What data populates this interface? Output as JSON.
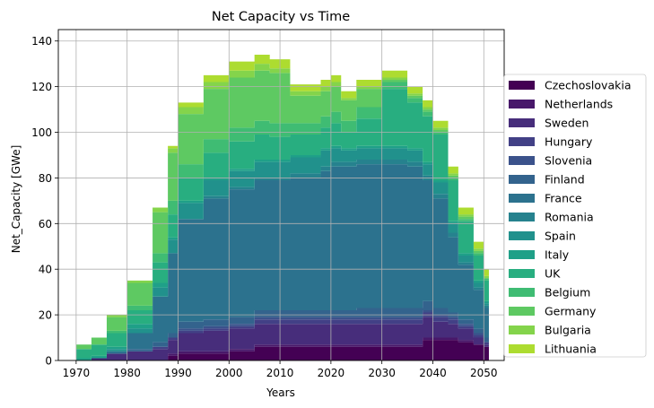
{
  "chart_data": {
    "type": "area",
    "stacked": true,
    "step": true,
    "title": "Net Capacity vs Time",
    "xlabel": "Years",
    "ylabel": "Net_Capacity [GWe]",
    "xlim": [
      1966.5,
      2054
    ],
    "ylim": [
      0,
      145
    ],
    "xticks": [
      1970,
      1980,
      1990,
      2000,
      2010,
      2020,
      2030,
      2040,
      2050
    ],
    "yticks": [
      0,
      20,
      40,
      60,
      80,
      100,
      120,
      140
    ],
    "grid": true,
    "legend_position": "center-right outside",
    "x": [
      1970,
      1973,
      1976,
      1980,
      1985,
      1988,
      1990,
      1995,
      2000,
      2005,
      2008,
      2012,
      2018,
      2020,
      2022,
      2025,
      2030,
      2035,
      2038,
      2040,
      2043,
      2045,
      2048,
      2050
    ],
    "series": [
      {
        "name": "Czechoslovakia",
        "color": "#440154",
        "values": [
          0,
          0,
          0,
          0,
          0,
          2,
          3,
          3,
          4,
          6,
          6,
          6,
          6,
          6,
          6,
          6,
          6,
          6,
          9,
          9,
          9,
          8,
          7,
          6
        ]
      },
      {
        "name": "Netherlands",
        "color": "#48186a",
        "values": [
          0,
          0,
          0,
          0,
          0,
          1,
          1,
          1,
          1,
          1,
          1,
          1,
          1,
          1,
          1,
          1,
          1,
          1,
          1,
          1,
          1,
          1,
          0,
          0
        ]
      },
      {
        "name": "Sweden",
        "color": "#472d7b",
        "values": [
          0,
          1,
          3,
          4,
          5,
          6,
          8,
          9,
          9,
          9,
          9,
          9,
          9,
          9,
          9,
          9,
          9,
          9,
          9,
          7,
          6,
          5,
          3,
          1
        ]
      },
      {
        "name": "Hungary",
        "color": "#424086",
        "values": [
          0,
          0,
          0,
          0,
          1,
          1,
          1,
          1,
          1,
          2,
          2,
          2,
          2,
          2,
          2,
          2,
          2,
          2,
          2,
          2,
          2,
          1,
          1,
          1
        ]
      },
      {
        "name": "Slovenia",
        "color": "#3b528b",
        "values": [
          0,
          0,
          0,
          0,
          0,
          0,
          1,
          1,
          1,
          1,
          1,
          1,
          1,
          1,
          1,
          1,
          1,
          1,
          1,
          1,
          1,
          1,
          1,
          0
        ]
      },
      {
        "name": "Finland",
        "color": "#33638d",
        "values": [
          0,
          0,
          0,
          1,
          2,
          2,
          3,
          3,
          3,
          3,
          3,
          3,
          3,
          3,
          3,
          4,
          4,
          4,
          4,
          3,
          2,
          2,
          2,
          2
        ]
      },
      {
        "name": "France",
        "color": "#2c728e",
        "values": [
          0,
          0,
          1,
          7,
          20,
          35,
          45,
          53,
          56,
          57,
          57,
          58,
          61,
          63,
          63,
          63,
          63,
          62,
          53,
          48,
          33,
          24,
          17,
          13
        ]
      },
      {
        "name": "Romania",
        "color": "#26828e",
        "values": [
          0,
          0,
          0,
          0,
          0,
          0,
          0,
          1,
          1,
          1,
          1,
          2,
          2,
          2,
          2,
          2,
          2,
          2,
          2,
          2,
          2,
          1,
          1,
          1
        ]
      },
      {
        "name": "Spain",
        "color": "#21918c",
        "values": [
          0,
          0,
          1,
          2,
          4,
          6,
          7,
          7,
          7,
          7,
          7,
          7,
          7,
          6,
          5,
          5,
          5,
          5,
          5,
          5,
          4,
          3,
          2,
          1
        ]
      },
      {
        "name": "Italy",
        "color": "#1fa088",
        "values": [
          1,
          1,
          1,
          2,
          2,
          1,
          1,
          1,
          1,
          1,
          1,
          1,
          1,
          1,
          1,
          1,
          1,
          1,
          1,
          1,
          1,
          1,
          1,
          1
        ]
      },
      {
        "name": "UK",
        "color": "#28ae80",
        "values": [
          4,
          5,
          6,
          6,
          9,
          10,
          10,
          11,
          12,
          11,
          10,
          9,
          9,
          10,
          7,
          12,
          25,
          20,
          20,
          20,
          18,
          14,
          11,
          9
        ]
      },
      {
        "name": "Belgium",
        "color": "#3fbc73",
        "values": [
          0,
          0,
          1,
          2,
          4,
          6,
          6,
          6,
          6,
          6,
          6,
          5,
          5,
          5,
          5,
          5,
          3,
          2,
          2,
          1,
          1,
          1,
          1,
          1
        ]
      },
      {
        "name": "Germany",
        "color": "#5ec962",
        "values": [
          2,
          3,
          6,
          10,
          18,
          21,
          22,
          22,
          22,
          22,
          22,
          12,
          11,
          11,
          9,
          8,
          1,
          1,
          1,
          1,
          1,
          1,
          1,
          0
        ]
      },
      {
        "name": "Bulgaria",
        "color": "#84d44b",
        "values": [
          0,
          0,
          1,
          1,
          2,
          2,
          3,
          3,
          3,
          3,
          2,
          2,
          2,
          2,
          1,
          1,
          1,
          1,
          1,
          1,
          1,
          1,
          1,
          1
        ]
      },
      {
        "name": "Lithuania",
        "color": "#addc30",
        "values": [
          0,
          0,
          0,
          0,
          0,
          1,
          2,
          3,
          4,
          4,
          4,
          3,
          3,
          3,
          3,
          3,
          3,
          3,
          3,
          3,
          3,
          3,
          3,
          3
        ]
      }
    ]
  }
}
